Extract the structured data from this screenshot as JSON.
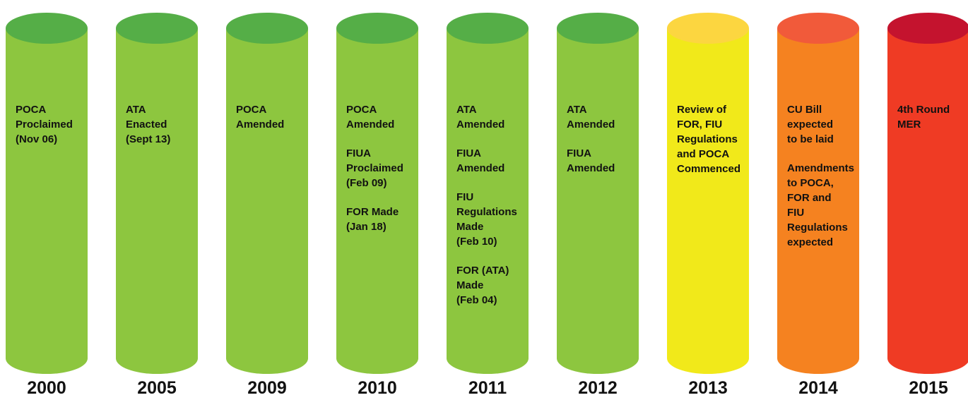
{
  "columns": [
    {
      "year": "2000",
      "body": "#8dc63f",
      "top": "#55ae47",
      "notes": [
        [
          "POCA",
          "Proclaimed",
          "(Nov 06)"
        ]
      ]
    },
    {
      "year": "2005",
      "body": "#8dc63f",
      "top": "#55ae47",
      "notes": [
        [
          "ATA",
          "Enacted",
          "(Sept 13)"
        ]
      ]
    },
    {
      "year": "2009",
      "body": "#8dc63f",
      "top": "#55ae47",
      "notes": [
        [
          "POCA",
          "Amended"
        ]
      ]
    },
    {
      "year": "2010",
      "body": "#8dc63f",
      "top": "#55ae47",
      "notes": [
        [
          "POCA",
          "Amended"
        ],
        [
          "FIUA",
          "Proclaimed",
          "(Feb 09)"
        ],
        [
          "FOR Made",
          "(Jan 18)"
        ]
      ]
    },
    {
      "year": "2011",
      "body": "#8dc63f",
      "top": "#55ae47",
      "notes": [
        [
          "ATA",
          "Amended"
        ],
        [
          "FIUA",
          "Amended"
        ],
        [
          "FIU",
          "Regulations",
          "Made",
          "(Feb 10)"
        ],
        [
          "FOR (ATA)",
          "Made",
          "(Feb 04)"
        ]
      ]
    },
    {
      "year": "2012",
      "body": "#8dc63f",
      "top": "#55ae47",
      "notes": [
        [
          "ATA",
          "Amended"
        ],
        [
          "FIUA",
          "Amended"
        ]
      ]
    },
    {
      "year": "2013",
      "body": "#f1e91a",
      "top": "#fcd640",
      "notes": [
        [
          "Review of",
          "FOR, FIU",
          "Regulations",
          "and POCA",
          "Commenced"
        ]
      ]
    },
    {
      "year": "2014",
      "body": "#f58220",
      "top": "#f15a3a",
      "notes": [
        [
          "CU Bill",
          "expected",
          "to be laid"
        ],
        [
          "Amendments",
          "to POCA,",
          "FOR and",
          "FIU",
          "Regulations",
          "expected"
        ]
      ]
    },
    {
      "year": "2015",
      "body": "#ef3b24",
      "top": "#c4132e",
      "notes": [
        [
          "4th Round",
          "MER"
        ]
      ]
    }
  ]
}
